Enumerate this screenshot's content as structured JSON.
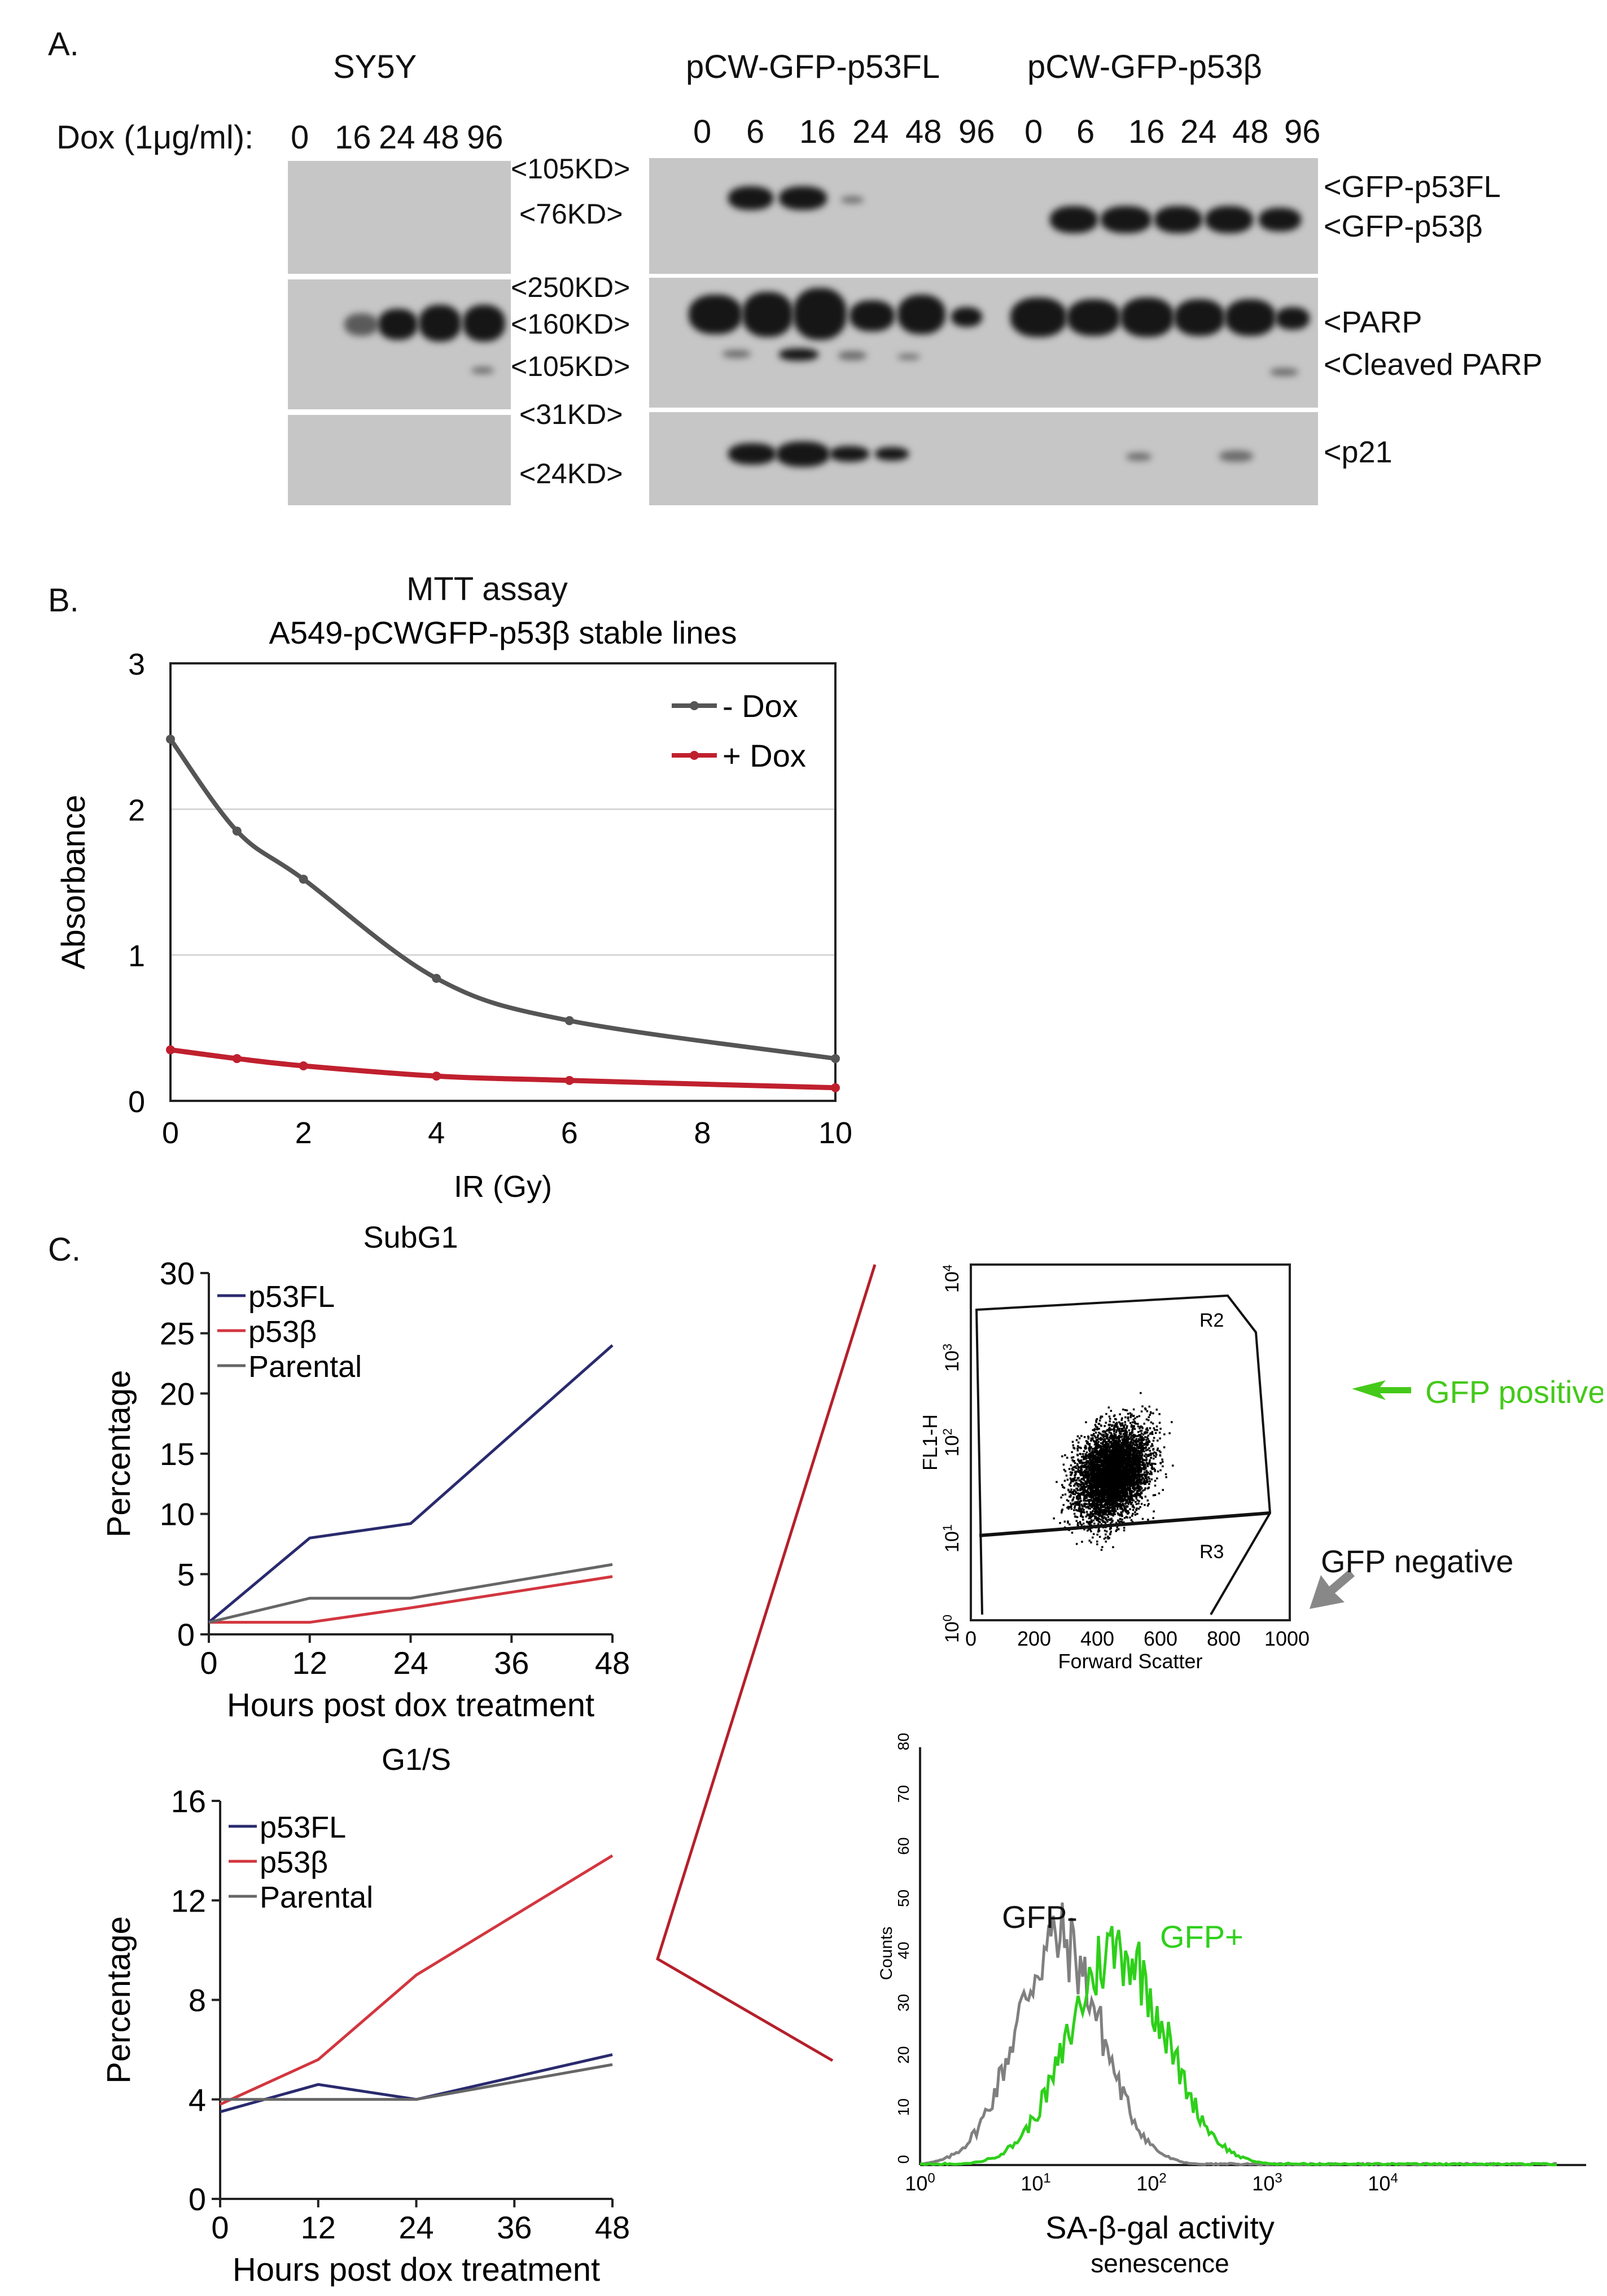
{
  "panelA": {
    "letter": "A.",
    "sy5y_title": "SY5Y",
    "fl_title": "pCW-GFP-p53FL",
    "beta_title": "pCW-GFP-p53β",
    "dox_label": "Dox (1μg/ml):",
    "sy5y_lanes": [
      "0",
      "16",
      "24",
      "48",
      "96"
    ],
    "fl_lanes": [
      "0",
      "6",
      "16",
      "24",
      "48",
      "96"
    ],
    "beta_lanes": [
      "0",
      "6",
      "16",
      "24",
      "48",
      "96"
    ],
    "markers": [
      "<105KD>",
      "<76KD>",
      "<250KD>",
      "<160KD>",
      "<105KD>",
      "<31KD>",
      "<24KD>"
    ],
    "band_labels": [
      "<GFP-p53FL",
      "<GFP-p53β",
      "<PARP",
      "<Cleaved PARP",
      "<p21"
    ]
  },
  "panelB": {
    "letter": "B.",
    "title1": "MTT assay",
    "chart_data": {
      "type": "line",
      "title": "A549-pCWGFP-p53β stable lines",
      "xlabel": "IR (Gy)",
      "ylabel": "Absorbance",
      "xlim": [
        0,
        10
      ],
      "ylim": [
        0,
        3
      ],
      "xticks": [
        "0",
        "2",
        "4",
        "6",
        "8",
        "10"
      ],
      "yticks": [
        "0",
        "1",
        "2",
        "3"
      ],
      "legend_position": "top-right",
      "series": [
        {
          "name": "- Dox",
          "color": "#555555",
          "x": [
            0,
            1,
            2,
            4,
            6,
            10
          ],
          "y": [
            2.48,
            1.85,
            1.52,
            0.84,
            0.55,
            0.29
          ]
        },
        {
          "name": "+ Dox",
          "color": "#c0202e",
          "x": [
            0,
            1,
            2,
            4,
            6,
            10
          ],
          "y": [
            0.35,
            0.29,
            0.24,
            0.17,
            0.14,
            0.09
          ]
        }
      ]
    }
  },
  "panelC": {
    "letter": "C.",
    "chart_data": [
      {
        "type": "line",
        "title": "SubG1",
        "xlabel": "Hours post dox treatment",
        "ylabel": "Percentage",
        "xlim": [
          0,
          48
        ],
        "ylim": [
          0,
          30
        ],
        "xticks": [
          "0",
          "12",
          "24",
          "36",
          "48"
        ],
        "yticks": [
          "0",
          "5",
          "10",
          "15",
          "20",
          "25",
          "30"
        ],
        "legend_position": "top-left",
        "series": [
          {
            "name": "p53FL",
            "color": "#2a2a6e",
            "x": [
              0,
              12,
              24,
              48
            ],
            "y": [
              1,
              8,
              9.2,
              24
            ]
          },
          {
            "name": "p53β",
            "color": "#d2363f",
            "x": [
              0,
              12,
              24,
              48
            ],
            "y": [
              1,
              1,
              2.2,
              4.8
            ]
          },
          {
            "name": "Parental",
            "color": "#666666",
            "x": [
              0,
              12,
              24,
              48
            ],
            "y": [
              1,
              3,
              3,
              5.8
            ]
          }
        ]
      },
      {
        "type": "line",
        "title": "G1/S",
        "xlabel": "Hours post dox treatment",
        "ylabel": "Percentage",
        "xlim": [
          0,
          48
        ],
        "ylim": [
          0,
          16
        ],
        "xticks": [
          "0",
          "12",
          "24",
          "36",
          "48"
        ],
        "yticks": [
          "0",
          "4",
          "8",
          "12",
          "16"
        ],
        "legend_position": "top-left",
        "series": [
          {
            "name": "p53FL",
            "color": "#2a2a6e",
            "x": [
              0,
              12,
              24,
              48
            ],
            "y": [
              3.5,
              4.6,
              4,
              5.8
            ]
          },
          {
            "name": "p53β",
            "color": "#d2363f",
            "x": [
              0,
              12,
              24,
              48
            ],
            "y": [
              3.8,
              5.6,
              9,
              13.8
            ]
          },
          {
            "name": "Parental",
            "color": "#666666",
            "x": [
              0,
              12,
              24,
              48
            ],
            "y": [
              4,
              4,
              4,
              5.4
            ]
          }
        ]
      }
    ],
    "scatter": {
      "xlabel": "Forward Scatter",
      "ylabel": "FL1-H",
      "xticks": [
        "0",
        "200",
        "400",
        "600",
        "800",
        "1000"
      ],
      "gate_r2": "R2",
      "gate_r3": "R3",
      "gfp_positive": "GFP positive",
      "gfp_negative": "GFP negative",
      "gfp_positive_color": "#44c91a",
      "gfp_negative_color": "#888888"
    },
    "histogram": {
      "xlabel": "SA-β-gal activity",
      "sublabel": "senescence",
      "ylabel": "Counts",
      "yticks": [
        "0",
        "10",
        "20",
        "30",
        "40",
        "50",
        "60",
        "70",
        "80"
      ],
      "gfp_minus": "GFP-",
      "gfp_plus": "GFP+",
      "gfp_plus_color": "#2ed01a",
      "gfp_minus_color": "#808080"
    }
  }
}
